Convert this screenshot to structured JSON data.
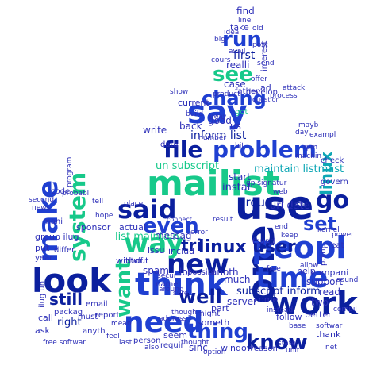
{
  "title": "Word cloud",
  "palette": {
    "blue": "#1f3fd1",
    "dark_blue": "#0b1f9e",
    "green": "#17c98a",
    "teal": "#0fa7b5",
    "navy": "#2d2fb8",
    "background": "#ffffff"
  },
  "words": {
    "mailist": "mailist",
    "use": "use",
    "one": "one",
    "work": "work",
    "peopl": "peopl",
    "think": "think",
    "look": "look",
    "make": "make",
    "system": "system",
    "new": "new",
    "time": "time",
    "need": "need",
    "said": "said",
    "way": "way",
    "well": "well",
    "even": "even",
    "say": "say",
    "see": "see",
    "run": "run",
    "chang": "chang",
    "file": "file",
    "problem": "problem",
    "know": "know",
    "thing": "thing",
    "want": "want",
    "go": "go",
    "set": "set",
    "linux": "linux",
    "linux_user": "linux user",
    "tri": "tri",
    "still": "still",
    "first": "first",
    "find": "find",
    "take": "take",
    "realli": "realli",
    "case": "case",
    "inform_list": "inform list",
    "un_subscript": "un subscript",
    "maintain_listmast": "maintain listmast",
    "group": "group",
    "url_date": "url date",
    "instal": "instal",
    "start": "start",
    "list_maintain": "list maintain",
    "messag": "messag",
    "user": "user",
    "spam": "spam",
    "help": "help",
    "compani": "compani",
    "support": "support",
    "read": "read",
    "server": "server",
    "come": "come",
    "two": "two",
    "subscript_inform": "subscript inform",
    "better": "better",
    "follow": "follow",
    "thank": "thank",
    "window": "window",
    "reason": "reason",
    "sinc": "sinc",
    "requir": "requir",
    "person": "person",
    "seem": "seem",
    "someth": "someth",
    "part": "part",
    "might": "might",
    "much": "much",
    "anoth": "anoth",
    "lot": "lot",
    "possibl": "possibl",
    "write": "write",
    "good": "good",
    "got": "got",
    "current": "current",
    "develop": "develop",
    "back": "back",
    "us": "us",
    "issu": "issu",
    "includ": "includ",
    "actual": "actual",
    "without": "without",
    "code": "code",
    "group_ilug": "group ilug",
    "put": "put",
    "year": "year",
    "email": "email",
    "report": "report",
    "right": "right",
    "call": "call",
    "ask": "ask",
    "packag": "packag",
    "must": "must",
    "anyth": "anyth",
    "differ": "differ",
    "sponsor": "sponsor",
    "ilug_un": "ilug un",
    "mani": "mani",
    "interest": "interest",
    "found": "found",
    "keep": "keep",
    "data": "data",
    "name": "name",
    "point": "point",
    "creat": "creat",
    "check": "check",
    "govern": "govern",
    "exampl": "exampl",
    "base": "base",
    "softwar": "softwar",
    "secur": "secur",
    "number": "number",
    "day": "day",
    "mayb": "mayb",
    "idea": "idea",
    "avail": "avail",
    "cours": "cours",
    "sure": "sure",
    "product": "product",
    "show": "show",
    "around": "around",
    "address": "address",
    "allow": "allow",
    "free": "free",
    "program": "program",
    "probabl": "probabl",
    "question": "question",
    "place": "place",
    "gp_signatur": "gp signatur",
    "result": "result",
    "connect": "connect",
    "bit": "bit",
    "build": "build",
    "instead": "instead",
    "process": "process",
    "offer": "offer",
    "attack": "attack",
    "father": "father",
    "ad": "ad",
    "stuff": "stuff",
    "error": "error",
    "state": "state",
    "though": "though",
    "thought": "thought",
    "option": "option",
    "unit": "unit",
    "net": "net",
    "free_software": "free softwar",
    "last": "last",
    "also": "also",
    "feel": "feel",
    "mean": "mean",
    "second": "second",
    "news": "news",
    "tell": "tell",
    "hope": "hope",
    "alway": "alway",
    "line": "line",
    "old": "old",
    "big": "big",
    "post": "post",
    "send": "send",
    "web": "web",
    "end": "end",
    "machin": "machin",
    "rpm": "rpm",
    "sound": "sound",
    "compil": "compil",
    "kernel": "kernel",
    "power": "power"
  }
}
